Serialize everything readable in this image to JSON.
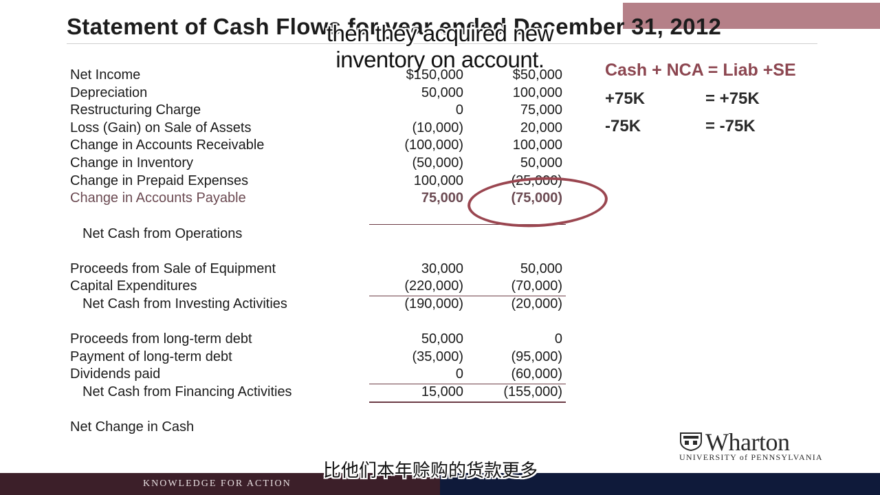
{
  "slide": {
    "title": "Statement of Cash Flows for year ended December 31, 2012",
    "accent_color": "#a86a73"
  },
  "caption_en": {
    "line1": "then they acquired new",
    "line2": "inventory on account."
  },
  "caption_cn": "比他们本年赊购的货款更多",
  "statement": {
    "rows": [
      {
        "label": "Net Income",
        "col1": "$150,000",
        "col2": "$50,000"
      },
      {
        "label": "Depreciation",
        "col1": "50,000",
        "col2": "100,000"
      },
      {
        "label": "Restructuring Charge",
        "col1": "0",
        "col2": "75,000"
      },
      {
        "label": "Loss (Gain) on Sale of Assets",
        "col1": "(10,000)",
        "col2": "20,000"
      },
      {
        "label": "Change in Accounts Receivable",
        "col1": "(100,000)",
        "col2": "100,000"
      },
      {
        "label": "Change in Inventory",
        "col1": "(50,000)",
        "col2": "50,000"
      },
      {
        "label": "Change in Prepaid Expenses",
        "col1": "100,000",
        "col2": "(25,000)"
      },
      {
        "label": "Change in Accounts Payable",
        "col1": "75,000",
        "col2": "(75,000)"
      },
      {
        "label": "Net Cash from Operations",
        "col1": "",
        "col2": ""
      },
      {
        "label": "Proceeds from Sale of Equipment",
        "col1": "30,000",
        "col2": "50,000"
      },
      {
        "label": "Capital Expenditures",
        "col1": "(220,000)",
        "col2": "(70,000)"
      },
      {
        "label": "Net Cash from Investing Activities",
        "col1": "(190,000)",
        "col2": "(20,000)"
      },
      {
        "label": "Proceeds from long-term debt",
        "col1": "50,000",
        "col2": "0"
      },
      {
        "label": "Payment of long-term debt",
        "col1": "(35,000)",
        "col2": "(95,000)"
      },
      {
        "label": "Dividends paid",
        "col1": "0",
        "col2": "(60,000)"
      },
      {
        "label": "Net Cash from Financing Activities",
        "col1": "15,000",
        "col2": "(155,000)"
      },
      {
        "label": "Net Change in Cash",
        "col1": "",
        "col2": ""
      }
    ]
  },
  "equation": {
    "header": "Cash + NCA = Liab +SE",
    "row1": {
      "left": "+75K",
      "right": "=  +75K"
    },
    "row2": {
      "left": "-75K",
      "right": "=  -75K"
    },
    "header_color": "#8c4650"
  },
  "logo": {
    "word": "Wharton",
    "sub": "UNIVERSITY of PENNSYLVANIA"
  },
  "footer": {
    "tagline": "KNOWLEDGE FOR ACTION",
    "left_color": "#3c1f29",
    "right_color": "#0f1a3a"
  }
}
